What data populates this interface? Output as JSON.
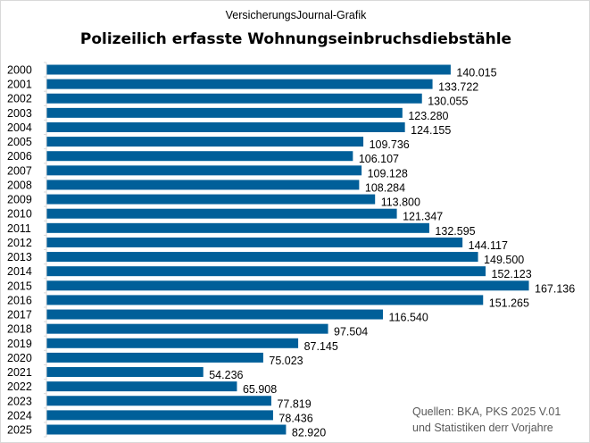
{
  "subtitle": "VersicherungsJournal-Grafik",
  "title": "Polizeilich erfasste Wohnungseinbruchsdiebstähle",
  "source": {
    "line1": "Quellen: BKA, PKS 2025 V.01",
    "line2": "und Statistiken derr Vorjahre"
  },
  "chart_data": {
    "type": "bar",
    "orientation": "horizontal",
    "title": "Polizeilich erfasste Wohnungseinbruchsdiebstähle",
    "categories": [
      "2000",
      "2001",
      "2002",
      "2003",
      "2004",
      "2005",
      "2006",
      "2007",
      "2008",
      "2009",
      "2010",
      "2011",
      "2012",
      "2013",
      "2014",
      "2015",
      "2016",
      "2017",
      "2018",
      "2019",
      "2020",
      "2021",
      "2022",
      "2023",
      "2024",
      "2025"
    ],
    "values": [
      140015,
      133722,
      130055,
      123280,
      124155,
      109736,
      106107,
      109128,
      108284,
      113800,
      121347,
      132595,
      144117,
      149500,
      152123,
      167136,
      151265,
      116540,
      97504,
      87145,
      75023,
      54236,
      65908,
      77819,
      78436,
      82920
    ],
    "data_labels": [
      "140.015",
      "133.722",
      "130.055",
      "123.280",
      "124.155",
      "109.736",
      "106.107",
      "109.128",
      "108.284",
      "113.800",
      "121.347",
      "132.595",
      "144.117",
      "149.500",
      "152.123",
      "167.136",
      "151.265",
      "116.540",
      "97.504",
      "87.145",
      "75.023",
      "54.236",
      "65.908",
      "77.819",
      "78.436",
      "82.920"
    ],
    "xlim": [
      0,
      180000
    ],
    "grid": false,
    "bar_color": "#005f99"
  }
}
